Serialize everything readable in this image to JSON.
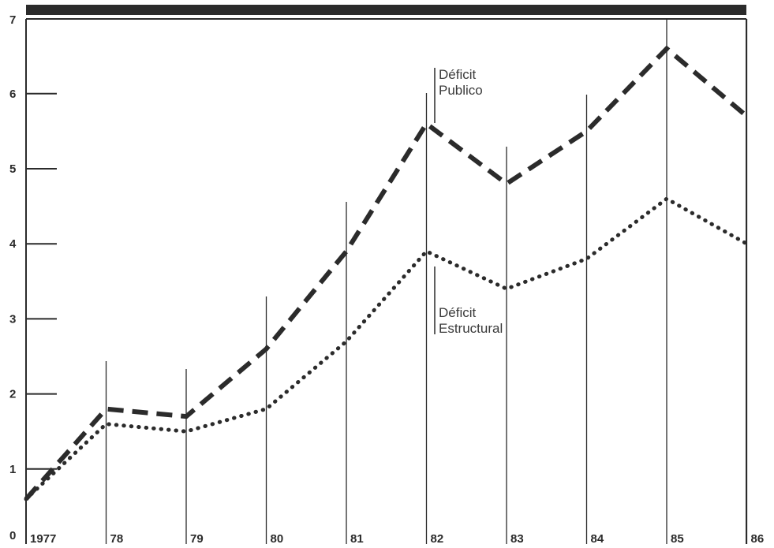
{
  "chart_data": {
    "type": "line",
    "title": "",
    "xlabel": "",
    "ylabel": "",
    "categories": [
      "1977",
      "78",
      "79",
      "80",
      "81",
      "82",
      "83",
      "84",
      "85",
      "86"
    ],
    "ylim": [
      0,
      7
    ],
    "yticks": [
      "0",
      "1",
      "2",
      "3",
      "4",
      "5",
      "6",
      "7"
    ],
    "grid": "vertical lines at each year",
    "series": [
      {
        "name": "Déficit Publico",
        "style": "dashed",
        "values": [
          0.6,
          1.8,
          1.7,
          2.6,
          3.9,
          5.6,
          4.8,
          5.5,
          6.6,
          5.7
        ]
      },
      {
        "name": "Déficit Estructural",
        "style": "dotted",
        "values": [
          0.6,
          1.6,
          1.5,
          1.8,
          2.7,
          3.9,
          3.4,
          3.8,
          4.6,
          4.0
        ]
      }
    ],
    "annotations": [
      {
        "series": "Déficit Publico",
        "lines": [
          "Déficit",
          "Publico"
        ]
      },
      {
        "series": "Déficit Estructural",
        "lines": [
          "Déficit",
          "Estructural"
        ]
      }
    ],
    "colors": {
      "ink": "#2b2b2b",
      "background": "#ffffff"
    }
  }
}
